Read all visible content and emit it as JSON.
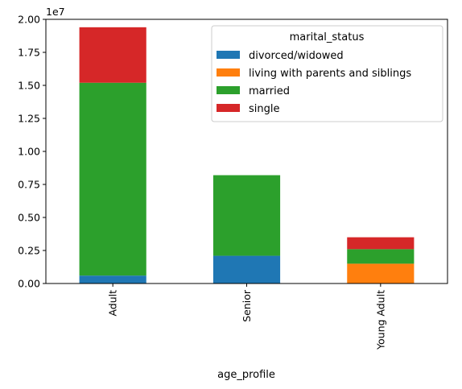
{
  "chart_data": {
    "type": "bar",
    "stacked": true,
    "categories": [
      "Adult",
      "Senior",
      "Young Adult"
    ],
    "series": [
      {
        "name": "divorced/widowed",
        "color": "#1f77b4",
        "values": [
          0.06,
          0.21,
          0.0
        ]
      },
      {
        "name": "living with parents and siblings",
        "color": "#ff7f0e",
        "values": [
          0.0,
          0.0,
          0.15
        ]
      },
      {
        "name": "married",
        "color": "#2ca02c",
        "values": [
          1.46,
          0.61,
          0.11
        ]
      },
      {
        "name": "single",
        "color": "#d62728",
        "values": [
          0.42,
          0.0,
          0.09
        ]
      }
    ],
    "yticks": [
      "0.00",
      "0.25",
      "0.50",
      "0.75",
      "1.00",
      "1.25",
      "1.50",
      "1.75",
      "2.00"
    ],
    "ylim": [
      0,
      2.0
    ],
    "yscale_label": "1e7",
    "xlabel": "age_profile",
    "ylabel": "",
    "legend_title": "marital_status",
    "legend_position": "top-right",
    "grid": false
  }
}
